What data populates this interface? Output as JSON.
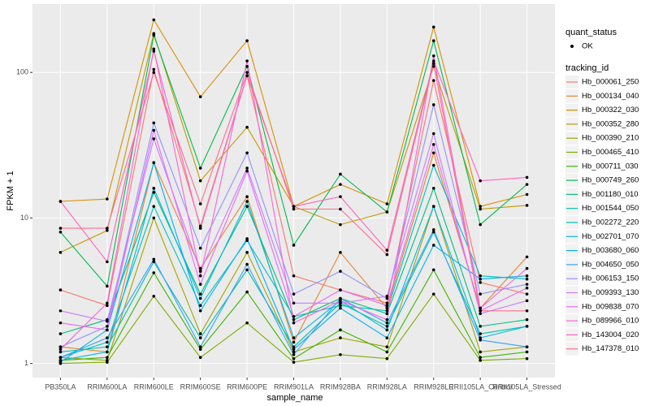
{
  "chart_data": {
    "type": "line",
    "y_label": "FPKM + 1",
    "x_label": "sample_name",
    "categories": [
      "PB350LA",
      "RRIM600LA",
      "RRIM600LE",
      "RRIM600SE",
      "RRIM600PE",
      "RRIM901LA",
      "RRIM928BA",
      "RRIM928LA",
      "RRIM928LE",
      "RRII105LA_Control",
      "RRII105LA_Stressed"
    ],
    "log_y": true,
    "ylim": [
      0.8,
      295
    ],
    "yticks": [
      1,
      10,
      100
    ],
    "grid": true,
    "legend_position": "right",
    "shape_legend": {
      "title": "quant_status",
      "labels": [
        "OK"
      ],
      "color": "#000000"
    },
    "legend_title": "tracking_id",
    "series": [
      {
        "name": "Hb_000061_250",
        "color": "#F8766D",
        "values": [
          3.2,
          2.5,
          105,
          8.8,
          95,
          4.0,
          3.2,
          2.6,
          88,
          3.6,
          3.0
        ]
      },
      {
        "name": "Hb_000134_040",
        "color": "#EA8331",
        "values": [
          1.3,
          1.2,
          24,
          4.5,
          14,
          1.4,
          5.8,
          2.4,
          28,
          2.4,
          5.4
        ]
      },
      {
        "name": "Hb_000322_030",
        "color": "#D89000",
        "values": [
          13,
          13.5,
          230,
          68,
          165,
          12,
          17,
          12.5,
          205,
          12,
          14.5
        ]
      },
      {
        "name": "Hb_000352_280",
        "color": "#C09B00",
        "values": [
          5.8,
          8.2,
          185,
          18,
          42,
          12,
          9.0,
          11,
          110,
          11.5,
          12.2
        ]
      },
      {
        "name": "Hb_000390_210",
        "color": "#A3A500",
        "values": [
          1.1,
          1.05,
          10,
          1.6,
          5.8,
          1.2,
          1.5,
          1.3,
          12,
          1.2,
          1.3
        ]
      },
      {
        "name": "Hb_000465_410",
        "color": "#7CAE00",
        "values": [
          1.0,
          1.02,
          2.9,
          1.1,
          1.9,
          1.02,
          1.15,
          1.08,
          3.0,
          1.05,
          1.08
        ]
      },
      {
        "name": "Hb_000711_030",
        "color": "#39B600",
        "values": [
          1.05,
          1.1,
          4.2,
          1.25,
          3.1,
          1.08,
          1.7,
          1.2,
          4.4,
          1.1,
          1.2
        ]
      },
      {
        "name": "Hb_000749_260",
        "color": "#00BB4E",
        "values": [
          8,
          3.4,
          180,
          22,
          110,
          6.5,
          20,
          11,
          165,
          9,
          17
        ]
      },
      {
        "name": "Hb_001180_010",
        "color": "#00BF7D",
        "values": [
          1.6,
          2.0,
          15,
          3.0,
          12,
          2.0,
          2.8,
          2.2,
          16,
          1.8,
          2.0
        ]
      },
      {
        "name": "Hb_001544_050",
        "color": "#00C1A3",
        "values": [
          1.2,
          1.3,
          5.0,
          1.5,
          4.4,
          1.3,
          2.6,
          1.8,
          8.0,
          1.6,
          1.8
        ]
      },
      {
        "name": "Hb_002272_220",
        "color": "#00BFC4",
        "values": [
          1.1,
          1.4,
          12,
          2.5,
          7,
          2.1,
          2.5,
          2.3,
          23,
          4.0,
          3.8
        ]
      },
      {
        "name": "Hb_002701_070",
        "color": "#00BAE0",
        "values": [
          1.05,
          1.2,
          16,
          2.8,
          13,
          1.5,
          2.7,
          1.7,
          12,
          1.5,
          1.8
        ]
      },
      {
        "name": "Hb_003680_060",
        "color": "#00B0F6",
        "values": [
          1.02,
          1.7,
          24,
          2.3,
          7.2,
          1.25,
          2.4,
          1.5,
          6.5,
          3.8,
          4.0
        ]
      },
      {
        "name": "Hb_004650_050",
        "color": "#35A2FF",
        "values": [
          1.1,
          1.5,
          5.2,
          1.3,
          4.8,
          1.15,
          2.8,
          1.9,
          8.3,
          1.45,
          1.3
        ]
      },
      {
        "name": "Hb_006153_150",
        "color": "#9590FF",
        "values": [
          1.3,
          1.8,
          45,
          6.2,
          28,
          3.0,
          4.3,
          2.8,
          60,
          3.0,
          3.5
        ]
      },
      {
        "name": "Hb_009393_130",
        "color": "#C77CFF",
        "values": [
          2.3,
          1.95,
          35,
          4.3,
          22,
          2.6,
          2.6,
          2.9,
          38,
          2.2,
          2.7
        ]
      },
      {
        "name": "Hb_009838_070",
        "color": "#E76BF3",
        "values": [
          1.9,
          1.7,
          40,
          3.5,
          21,
          2.1,
          3.2,
          2.5,
          32,
          2.3,
          3.3
        ]
      },
      {
        "name": "Hb_089966_010",
        "color": "#FA62DB",
        "values": [
          1.25,
          2.6,
          145,
          4.0,
          120,
          1.9,
          2.7,
          2.0,
          130,
          2.4,
          4.5
        ]
      },
      {
        "name": "Hb_143004_020",
        "color": "#FF62BC",
        "values": [
          13,
          5,
          140,
          8.5,
          95,
          12,
          14,
          6,
          120,
          18,
          19
        ]
      },
      {
        "name": "Hb_147378_010",
        "color": "#FF6C91",
        "values": [
          8.5,
          8.5,
          100,
          12.5,
          100,
          11.5,
          11.5,
          5.6,
          115,
          2.3,
          2.3
        ]
      }
    ]
  }
}
